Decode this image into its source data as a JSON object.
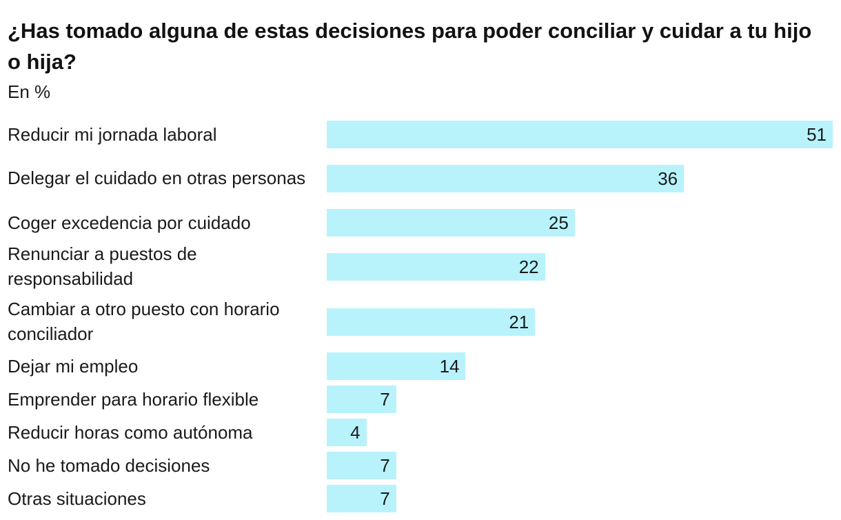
{
  "chart_data": {
    "type": "bar",
    "orientation": "horizontal",
    "title": "¿Has tomado alguna de estas decisiones para poder conciliar y cuidar a tu hijo o hija?",
    "subtitle": "En %",
    "categories": [
      "Reducir mi jornada laboral",
      "Delegar el cuidado en otras personas",
      "Coger excedencia por cuidado",
      "Renunciar a puestos de responsabilidad",
      "Cambiar a otro puesto con horario conciliador",
      "Dejar mi empleo",
      "Emprender para horario flexible",
      "Reducir horas como autónoma",
      "No he tomado decisiones",
      "Otras situaciones"
    ],
    "values": [
      51,
      36,
      25,
      22,
      21,
      14,
      7,
      4,
      7,
      7
    ],
    "xlim": [
      0,
      51
    ],
    "grid": false,
    "bar_color": "#b8f3fc"
  }
}
